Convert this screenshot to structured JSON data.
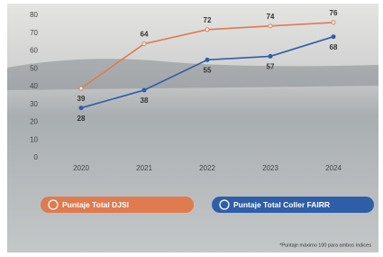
{
  "chart_data": {
    "type": "line",
    "categories": [
      "2020",
      "2021",
      "2022",
      "2023",
      "2024"
    ],
    "series": [
      {
        "name": "Puntaje Total DJSI",
        "color": "#e07a4f",
        "values": [
          39,
          64,
          72,
          74,
          76
        ]
      },
      {
        "name": "Puntaje Total Coller FAIRR",
        "color": "#2f5ea8",
        "values": [
          28,
          38,
          55,
          57,
          68
        ]
      }
    ],
    "ylim": [
      0,
      80
    ],
    "yticks": [
      0,
      10,
      20,
      30,
      40,
      50,
      60,
      70,
      80
    ],
    "grid": false,
    "footnote": "*Puntaje máximo 100 para ambos índices"
  }
}
